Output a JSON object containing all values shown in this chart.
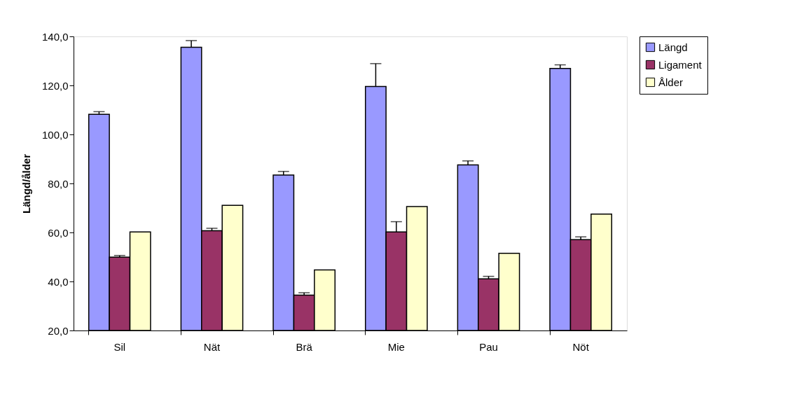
{
  "chart_data": {
    "type": "bar",
    "ylabel": "Längd/ålder",
    "categories": [
      "Sil",
      "Nät",
      "Brä",
      "Mie",
      "Pau",
      "Nöt"
    ],
    "series": [
      {
        "name": "Längd",
        "color": "#9999ff",
        "values": [
          108.2,
          135.6,
          83.4,
          119.6,
          87.6,
          126.9
        ],
        "errors": [
          [
            108.2,
            109.3
          ],
          [
            135.6,
            138.3
          ],
          [
            83.4,
            84.9
          ],
          [
            119.6,
            128.9
          ],
          [
            87.6,
            89.2
          ],
          [
            126.9,
            128.4
          ]
        ]
      },
      {
        "name": "Ligament",
        "color": "#993366",
        "values": [
          49.9,
          60.7,
          34.4,
          60.2,
          41.1,
          57.1
        ],
        "errors": [
          [
            49.9,
            50.6
          ],
          [
            60.7,
            61.7
          ],
          [
            34.4,
            35.4
          ],
          [
            60.2,
            64.4
          ],
          [
            41.1,
            42.1
          ],
          [
            57.1,
            58.2
          ]
        ]
      },
      {
        "name": "Ålder",
        "color": "#ffffcc",
        "values": [
          60.2,
          71.1,
          44.7,
          70.6,
          51.5,
          67.5
        ]
      }
    ],
    "ylim": [
      20,
      140
    ],
    "yticks": [
      {
        "value": 20,
        "label": "20,0"
      },
      {
        "value": 40,
        "label": "40,0"
      },
      {
        "value": 60,
        "label": "60,0"
      },
      {
        "value": 80,
        "label": "80,0"
      },
      {
        "value": 100,
        "label": "100,0"
      },
      {
        "value": 120,
        "label": "120,0"
      },
      {
        "value": 140,
        "label": "140,0"
      }
    ],
    "grid": false,
    "legend": "right"
  }
}
